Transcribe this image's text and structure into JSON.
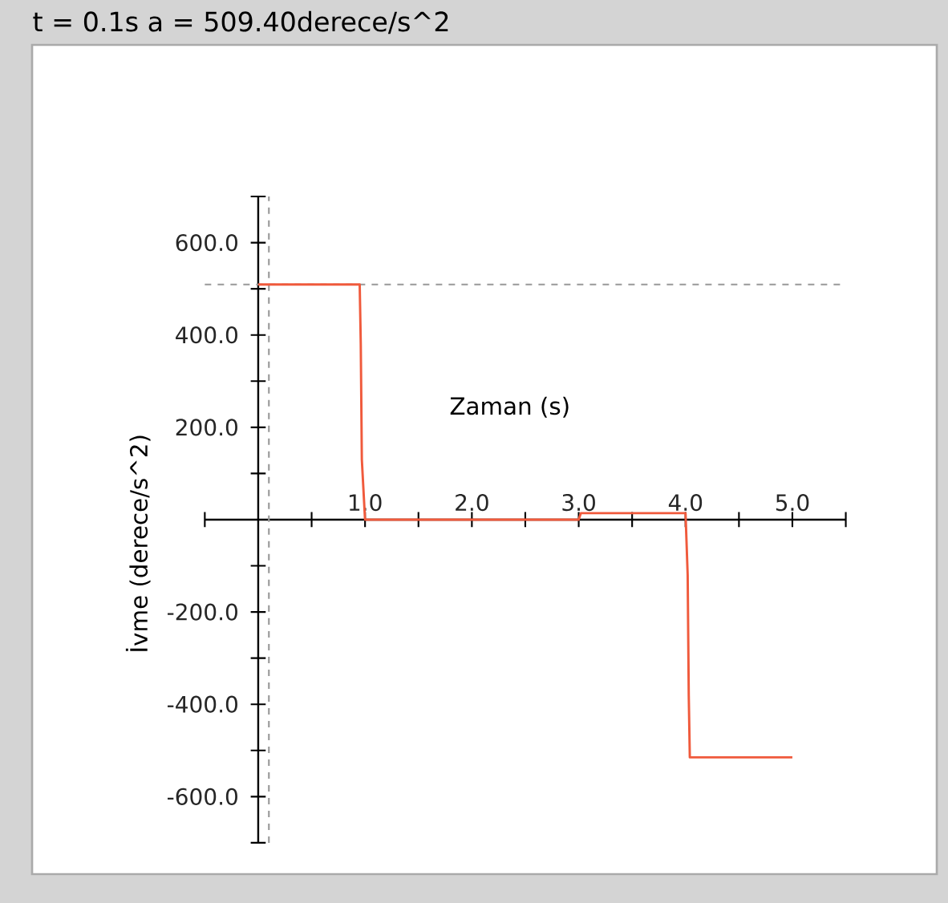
{
  "chart_data": {
    "type": "line",
    "title": "t = 0.1s  a = 509.40derece/s^2",
    "xlabel": "Zaman (s)",
    "ylabel": "İvme (derece/s^2)",
    "x": [
      0,
      0.95,
      0.96,
      0.97,
      1.0,
      3.0,
      3.02,
      4.0,
      4.02,
      4.03,
      4.04,
      5.0
    ],
    "series": [
      {
        "color": "#f05a3c",
        "values": [
          509.4,
          509.4,
          380,
          130,
          0,
          0,
          14,
          14,
          -120,
          -380,
          -515,
          -515
        ]
      }
    ],
    "xlim": [
      -0.5,
      5.5
    ],
    "ylim": [
      -700,
      700
    ],
    "xticks": [
      {
        "value": -0.5,
        "label": null
      },
      {
        "value": 0,
        "label": null
      },
      {
        "value": 0.5,
        "label": null
      },
      {
        "value": 1,
        "label": "1.0"
      },
      {
        "value": 1.5,
        "label": null
      },
      {
        "value": 2,
        "label": "2.0"
      },
      {
        "value": 2.5,
        "label": null
      },
      {
        "value": 3,
        "label": "3.0"
      },
      {
        "value": 3.5,
        "label": null
      },
      {
        "value": 4,
        "label": "4.0"
      },
      {
        "value": 4.5,
        "label": null
      },
      {
        "value": 5,
        "label": "5.0"
      },
      {
        "value": 5.5,
        "label": null
      }
    ],
    "yticks": [
      {
        "value": -700,
        "label": null
      },
      {
        "value": -600,
        "label": "-600.0"
      },
      {
        "value": -500,
        "label": null
      },
      {
        "value": -400,
        "label": "-400.0"
      },
      {
        "value": -300,
        "label": null
      },
      {
        "value": -200,
        "label": "-200.0"
      },
      {
        "value": -100,
        "label": null
      },
      {
        "value": 0,
        "label": null
      },
      {
        "value": 100,
        "label": null
      },
      {
        "value": 200,
        "label": "200.0"
      },
      {
        "value": 300,
        "label": null
      },
      {
        "value": 400,
        "label": "400.0"
      },
      {
        "value": 500,
        "label": null
      },
      {
        "value": 600,
        "label": "600.0"
      },
      {
        "value": 700,
        "label": null
      }
    ],
    "ref_lines": [
      {
        "axis": "y",
        "value": 509.4,
        "color": "#999999",
        "line_style": "dashed"
      },
      {
        "axis": "x",
        "value": 0.1,
        "color": "#999999",
        "line_style": "dashed"
      }
    ]
  }
}
